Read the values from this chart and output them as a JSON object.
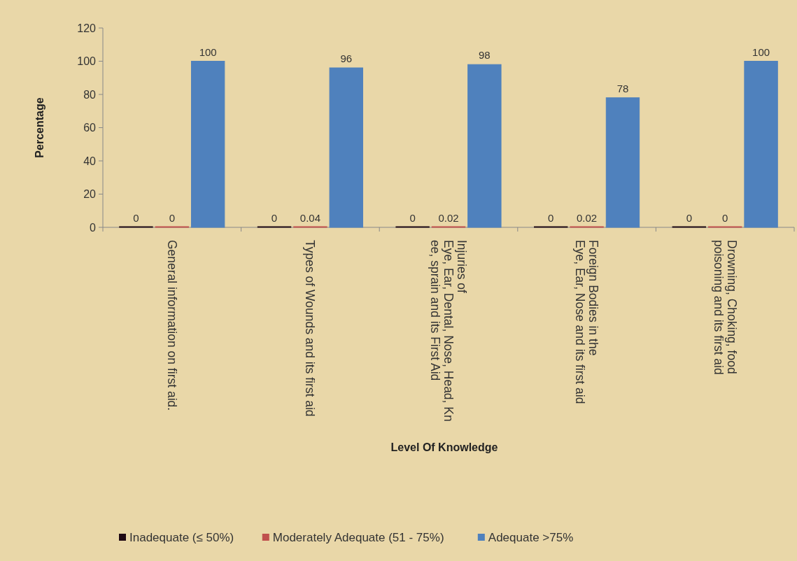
{
  "chart_data": {
    "type": "bar",
    "xlabel": "Level Of Knowledge",
    "ylabel": "Percentage",
    "categories": [
      "General information on first aid.",
      "Types of Wounds and its first aid",
      "Injuries of\nEye, Ear, Dental, Nose, Head, Kn\nee, sprain and its First Aid",
      "Foreign Bodies in the\nEye, Ear, Nose and its first aid",
      "Drowning, Choking, food\npoisoning and its first aid"
    ],
    "series": [
      {
        "name": "Inadequate (≤ 50%)",
        "color": "#1f0a14",
        "values": [
          0,
          0,
          0,
          0,
          0
        ]
      },
      {
        "name": "Moderately Adequate (51 - 75%)",
        "color": "#c0504d",
        "values": [
          0,
          0.04,
          0.02,
          0.02,
          0
        ]
      },
      {
        "name": "Adequate >75%",
        "color": "#4f81bd",
        "values": [
          100,
          96,
          98,
          78,
          100
        ]
      }
    ],
    "ylim": [
      0,
      120
    ],
    "yticks": [
      0,
      20,
      40,
      60,
      80,
      100,
      120
    ],
    "data_labels": true,
    "legend": "bottom"
  }
}
